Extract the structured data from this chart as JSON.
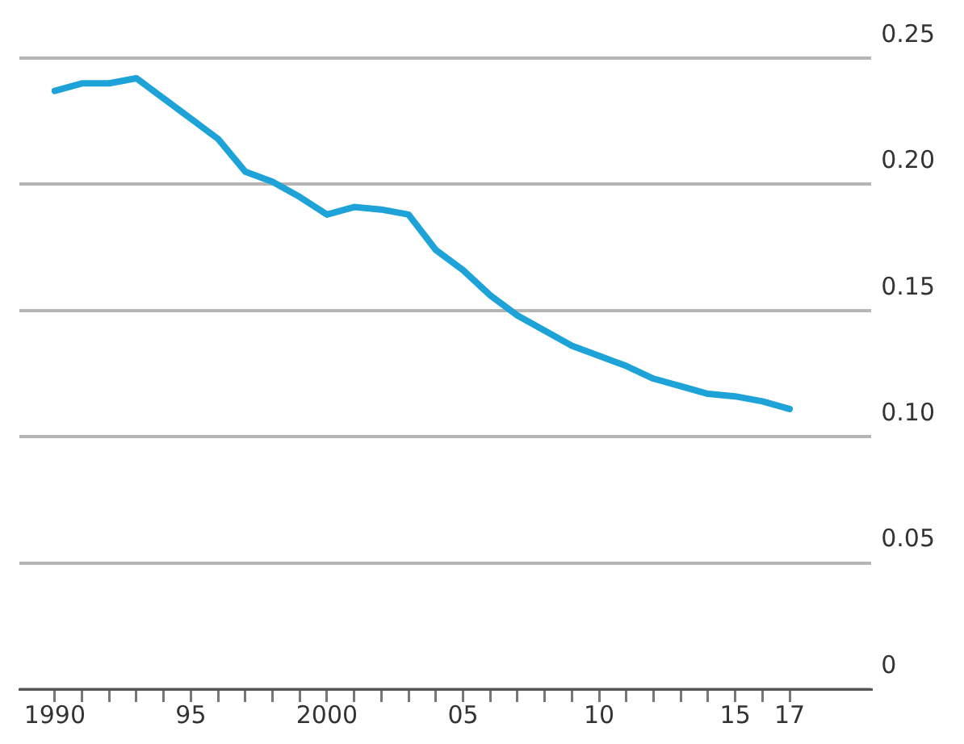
{
  "chart_data": {
    "type": "line",
    "x": [
      1990,
      1991,
      1992,
      1993,
      1994,
      1995,
      1996,
      1997,
      1998,
      1999,
      2000,
      2001,
      2002,
      2003,
      2004,
      2005,
      2006,
      2007,
      2008,
      2009,
      2010,
      2011,
      2012,
      2013,
      2014,
      2015,
      2016,
      2017
    ],
    "series": [
      {
        "color": "#1ea3d8",
        "values": [
          0.237,
          0.24,
          0.24,
          0.242,
          0.234,
          0.226,
          0.218,
          0.205,
          0.201,
          0.195,
          0.188,
          0.191,
          0.19,
          0.188,
          0.174,
          0.166,
          0.156,
          0.148,
          0.142,
          0.136,
          0.132,
          0.128,
          0.123,
          0.12,
          0.117,
          0.116,
          0.114,
          0.111
        ]
      }
    ],
    "xlim": [
      1988.7,
      2020
    ],
    "xticks": [
      {
        "value": 1990,
        "label": "1990"
      },
      {
        "value": 1991,
        "label": null
      },
      {
        "value": 1992,
        "label": null
      },
      {
        "value": 1993,
        "label": null
      },
      {
        "value": 1994,
        "label": null
      },
      {
        "value": 1995,
        "label": "95"
      },
      {
        "value": 1996,
        "label": null
      },
      {
        "value": 1997,
        "label": null
      },
      {
        "value": 1998,
        "label": null
      },
      {
        "value": 1999,
        "label": null
      },
      {
        "value": 2000,
        "label": "2000"
      },
      {
        "value": 2001,
        "label": null
      },
      {
        "value": 2002,
        "label": null
      },
      {
        "value": 2003,
        "label": null
      },
      {
        "value": 2004,
        "label": null
      },
      {
        "value": 2005,
        "label": "05"
      },
      {
        "value": 2006,
        "label": null
      },
      {
        "value": 2007,
        "label": null
      },
      {
        "value": 2008,
        "label": null
      },
      {
        "value": 2009,
        "label": null
      },
      {
        "value": 2010,
        "label": "10"
      },
      {
        "value": 2011,
        "label": null
      },
      {
        "value": 2012,
        "label": null
      },
      {
        "value": 2013,
        "label": null
      },
      {
        "value": 2014,
        "label": null
      },
      {
        "value": 2015,
        "label": "15"
      },
      {
        "value": 2016,
        "label": null
      },
      {
        "value": 2017,
        "label": "17"
      }
    ],
    "ylim": [
      0,
      0.25
    ],
    "yticks": [
      {
        "value": 0,
        "label": "0"
      },
      {
        "value": 0.05,
        "label": "0.05"
      },
      {
        "value": 0.1,
        "label": "0.10"
      },
      {
        "value": 0.15,
        "label": "0.15"
      },
      {
        "value": 0.2,
        "label": "0.20"
      },
      {
        "value": 0.25,
        "label": "0.25"
      }
    ],
    "grid": "y",
    "legend": false,
    "marker": "none",
    "line_style": "solid"
  }
}
